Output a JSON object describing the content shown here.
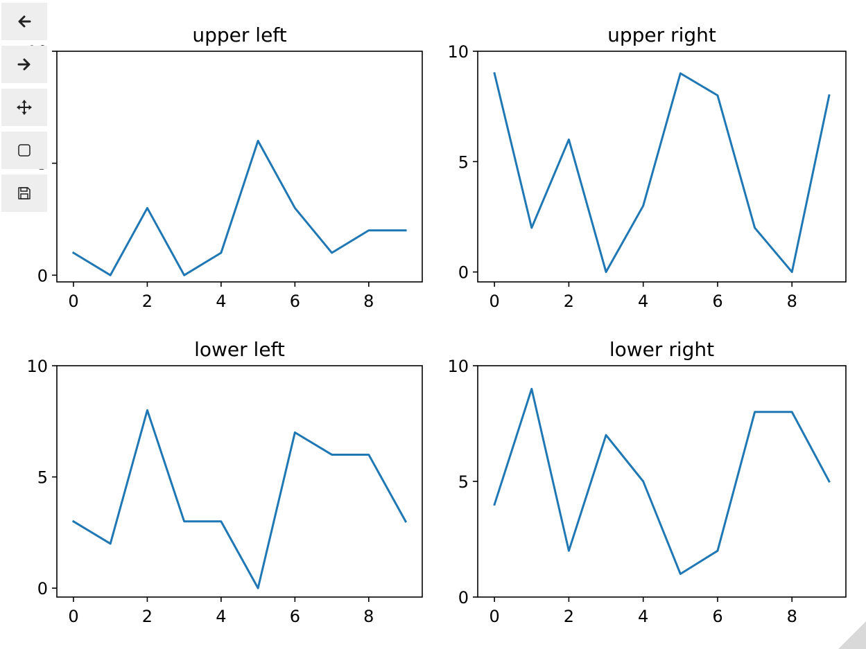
{
  "toolbar": {
    "buttons": [
      {
        "name": "back",
        "icon": "arrow-left-icon"
      },
      {
        "name": "forward",
        "icon": "arrow-right-icon"
      },
      {
        "name": "pan",
        "icon": "move-icon"
      },
      {
        "name": "zoom",
        "icon": "zoom-rect-icon"
      },
      {
        "name": "save",
        "icon": "save-icon"
      }
    ]
  },
  "colors": {
    "line": "#1f77b4",
    "axes": "#000000",
    "toolbar_bg": "#eeeeee"
  },
  "chart_data": [
    {
      "type": "line",
      "title": "upper left",
      "x": [
        0,
        1,
        2,
        3,
        4,
        5,
        6,
        7,
        8,
        9
      ],
      "series": [
        {
          "values": [
            1,
            0,
            3,
            0,
            1,
            6,
            3,
            1,
            2,
            2
          ]
        }
      ],
      "xlim": [
        -0.45,
        9.45
      ],
      "ylim": [
        -0.3,
        10
      ],
      "xticks": [
        0,
        2,
        4,
        6,
        8
      ],
      "yticks": [
        0,
        5,
        10
      ],
      "xlabel": "",
      "ylabel": ""
    },
    {
      "type": "line",
      "title": "upper right",
      "x": [
        0,
        1,
        2,
        3,
        4,
        5,
        6,
        7,
        8,
        9
      ],
      "series": [
        {
          "values": [
            9,
            2,
            6,
            0,
            3,
            9,
            8,
            2,
            0,
            8
          ]
        }
      ],
      "xlim": [
        -0.45,
        9.45
      ],
      "ylim": [
        -0.45,
        10
      ],
      "xticks": [
        0,
        2,
        4,
        6,
        8
      ],
      "yticks": [
        0,
        5,
        10
      ],
      "xlabel": "",
      "ylabel": ""
    },
    {
      "type": "line",
      "title": "lower left",
      "x": [
        0,
        1,
        2,
        3,
        4,
        5,
        6,
        7,
        8,
        9
      ],
      "series": [
        {
          "values": [
            3,
            2,
            8,
            3,
            3,
            0,
            7,
            6,
            6,
            3
          ]
        }
      ],
      "xlim": [
        -0.45,
        9.45
      ],
      "ylim": [
        -0.4,
        10
      ],
      "xticks": [
        0,
        2,
        4,
        6,
        8
      ],
      "yticks": [
        0,
        5,
        10
      ],
      "xlabel": "",
      "ylabel": ""
    },
    {
      "type": "line",
      "title": "lower right",
      "x": [
        0,
        1,
        2,
        3,
        4,
        5,
        6,
        7,
        8,
        9
      ],
      "series": [
        {
          "values": [
            4,
            9,
            2,
            7,
            5,
            1,
            2,
            8,
            8,
            5
          ]
        }
      ],
      "xlim": [
        -0.45,
        9.45
      ],
      "ylim": [
        0,
        10
      ],
      "xticks": [
        0,
        2,
        4,
        6,
        8
      ],
      "yticks": [
        0,
        5,
        10
      ],
      "xlabel": "",
      "ylabel": ""
    }
  ]
}
